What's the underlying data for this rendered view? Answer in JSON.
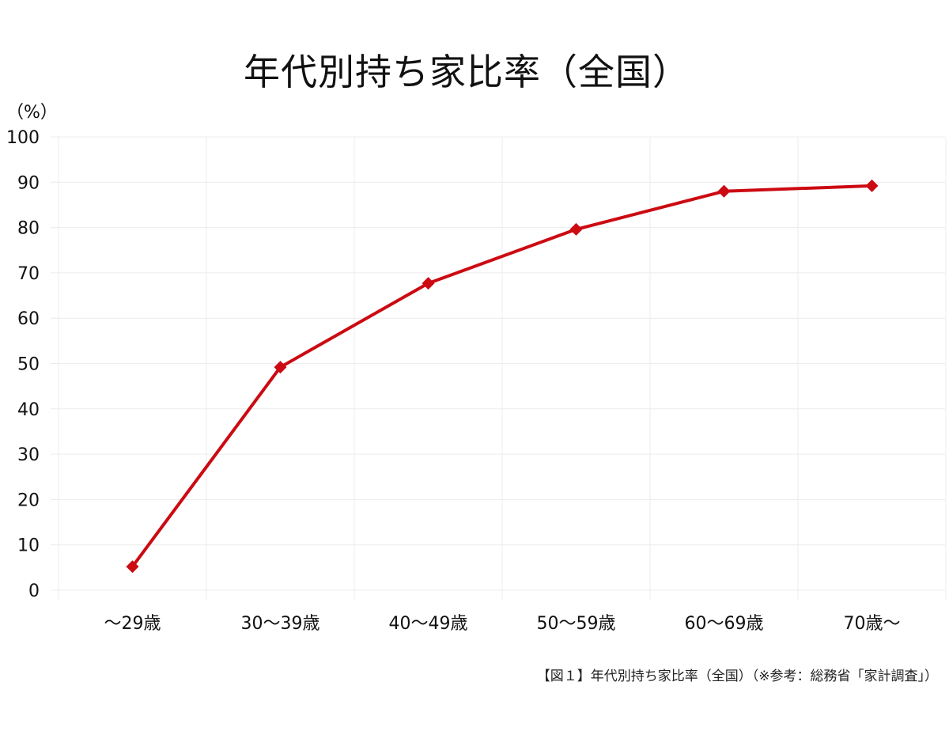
{
  "chart_data": {
    "type": "line",
    "title": "年代別持ち家比率（全国）",
    "ylabel": "（%）",
    "categories": [
      "～29歳",
      "30～39歳",
      "40～49歳",
      "50～59歳",
      "60～69歳",
      "70歳～"
    ],
    "values": [
      5.2,
      49.2,
      67.7,
      79.6,
      88.0,
      89.2
    ],
    "ylim": [
      0,
      100
    ],
    "yticks": [
      0,
      10,
      20,
      30,
      40,
      50,
      60,
      70,
      80,
      90,
      100
    ],
    "grid": true,
    "marker": "diamond",
    "color": "#cc0a12",
    "caption": "【図１】年代別持ち家比率（全国）（※参考：総務省「家計調査」）"
  }
}
